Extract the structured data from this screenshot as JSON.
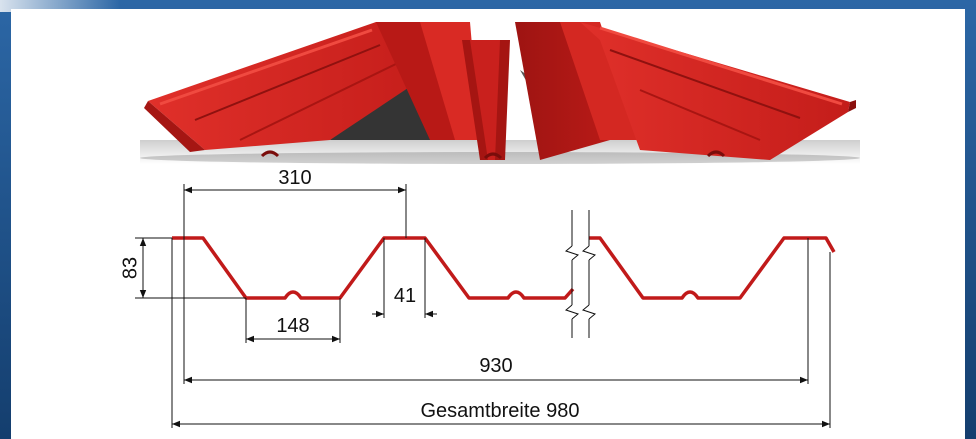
{
  "dimensions": {
    "pitch": "310",
    "height": "83",
    "valley_width": "148",
    "crest_width": "41",
    "cover_width": "930",
    "total_width": "Gesamtbreite 980"
  },
  "colors": {
    "frame": "#1f4f86",
    "panel": "#ffffff",
    "sheet_red": "#c9201d",
    "profile_line": "#c11a1a",
    "dimension_line": "#111111"
  }
}
